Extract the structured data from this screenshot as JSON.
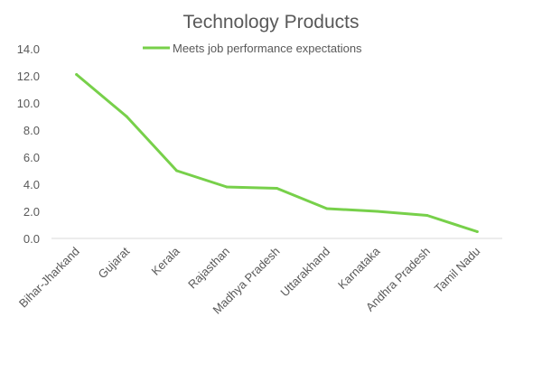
{
  "chart_data": {
    "type": "line",
    "title": "Technology Products",
    "xlabel": "",
    "ylabel": "",
    "categories": [
      "Bihar-Jharkand",
      "Gujarat",
      "Kerala",
      "Rajasthan",
      "Madhya Pradesh",
      "Uttarakhand",
      "Karnataka",
      "Andhra Pradesh",
      "Tamil Nadu"
    ],
    "series": [
      {
        "name": "Meets job performance expectations",
        "values": [
          12.1,
          9.0,
          5.0,
          3.8,
          3.7,
          2.2,
          2.0,
          1.7,
          0.5
        ],
        "color": "#77d04a"
      }
    ],
    "ylim": [
      0,
      14
    ],
    "yticks": [
      "0.0",
      "2.0",
      "4.0",
      "6.0",
      "8.0",
      "10.0",
      "12.0",
      "14.0"
    ],
    "grid": false,
    "legend_position": "top"
  }
}
